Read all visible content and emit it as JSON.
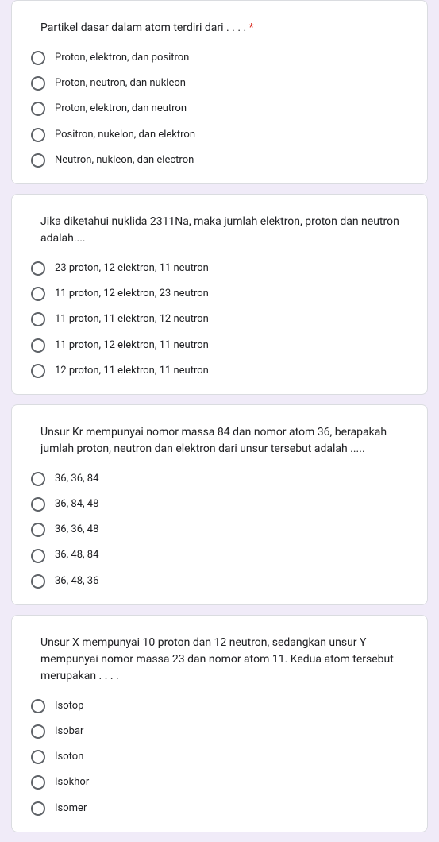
{
  "questions": [
    {
      "text": "Partikel dasar dalam atom terdiri dari . . . .",
      "required": true,
      "options": [
        "Proton, elektron, dan positron",
        "Proton, neutron, dan nukleon",
        "Proton, elektron, dan neutron",
        "Positron, nukelon, dan elektron",
        "Neutron, nukleon, dan electron"
      ]
    },
    {
      "text": "Jika diketahui nuklida 2311Na, maka jumlah elektron, proton dan neutron adalah....",
      "required": false,
      "options": [
        "23 proton, 12 elektron, 11 neutron",
        "11 proton, 12 elektron, 23 neutron",
        "11 proton, 11 elektron, 12 neutron",
        "11 proton, 12 elektron, 11 neutron",
        "12 proton, 11 elektron, 11 neutron"
      ]
    },
    {
      "text": "Unsur Kr mempunyai nomor massa 84 dan nomor atom 36, berapakah jumlah proton, neutron dan elektron dari unsur tersebut adalah .....",
      "required": false,
      "options": [
        "36, 36, 84",
        "36, 84, 48",
        "36, 36, 48",
        "36, 48, 84",
        "36, 48, 36"
      ]
    },
    {
      "text": "Unsur X mempunyai 10 proton dan 12 neutron, sedangkan unsur Y mempunyai nomor massa 23 dan nomor atom 11. Kedua atom tersebut merupakan . . . .",
      "required": false,
      "options": [
        "Isotop",
        "Isobar",
        "Isoton",
        "Isokhor",
        "Isomer"
      ]
    }
  ],
  "required_marker": " *",
  "colors": {
    "page_bg": "#f0ebf8",
    "card_bg": "#ffffff",
    "card_border": "#dadce0",
    "text": "#202124",
    "radio_border": "#5f6368",
    "required": "#d93025"
  }
}
